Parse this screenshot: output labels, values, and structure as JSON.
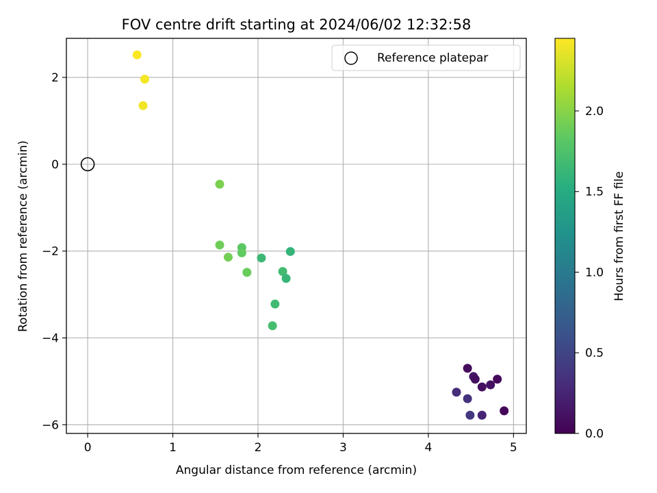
{
  "chart_data": {
    "type": "scatter",
    "title": "FOV centre drift starting at 2024/06/02 12:32:58",
    "xlabel": "Angular distance from reference (arcmin)",
    "ylabel": "Rotation from reference (arcmin)",
    "xlim": [
      -0.25,
      5.15
    ],
    "ylim": [
      -6.2,
      2.9
    ],
    "x_ticks": [
      0,
      1,
      2,
      3,
      4,
      5
    ],
    "x_tick_labels": [
      "0",
      "1",
      "2",
      "3",
      "4",
      "5"
    ],
    "y_ticks": [
      2,
      0,
      -2,
      -4,
      -6
    ],
    "y_tick_labels": [
      "2",
      "0",
      "−2",
      "−4",
      "−6"
    ],
    "grid": true,
    "legend": {
      "location": "top-right",
      "entries": [
        "Reference platepar"
      ]
    },
    "colorbar": {
      "label": "Hours from first FF file",
      "range": [
        0.0,
        2.45
      ],
      "ticks": [
        0.0,
        0.5,
        1.0,
        1.5,
        2.0
      ],
      "tick_labels": [
        "0.0",
        "0.5",
        "1.0",
        "1.5",
        "2.0"
      ],
      "colormap": "viridis"
    },
    "reference_point": {
      "x": 0,
      "y": 0,
      "name": "Reference platepar"
    },
    "points": [
      {
        "x": 0.58,
        "y": 2.52,
        "hours": 2.44
      },
      {
        "x": 0.67,
        "y": 1.96,
        "hours": 2.42
      },
      {
        "x": 0.65,
        "y": 1.35,
        "hours": 2.4
      },
      {
        "x": 1.55,
        "y": -0.46,
        "hours": 1.95
      },
      {
        "x": 1.55,
        "y": -1.86,
        "hours": 1.9
      },
      {
        "x": 1.65,
        "y": -2.14,
        "hours": 1.92
      },
      {
        "x": 1.81,
        "y": -1.92,
        "hours": 1.82
      },
      {
        "x": 1.81,
        "y": -2.04,
        "hours": 1.85
      },
      {
        "x": 1.87,
        "y": -2.49,
        "hours": 1.88
      },
      {
        "x": 2.04,
        "y": -2.16,
        "hours": 1.65
      },
      {
        "x": 2.38,
        "y": -2.01,
        "hours": 1.6
      },
      {
        "x": 2.29,
        "y": -2.47,
        "hours": 1.68
      },
      {
        "x": 2.33,
        "y": -2.63,
        "hours": 1.62
      },
      {
        "x": 2.2,
        "y": -3.22,
        "hours": 1.67
      },
      {
        "x": 2.17,
        "y": -3.72,
        "hours": 1.7
      },
      {
        "x": 4.46,
        "y": -4.7,
        "hours": 0.08
      },
      {
        "x": 4.53,
        "y": -4.89,
        "hours": 0.15
      },
      {
        "x": 4.55,
        "y": -4.95,
        "hours": 0.1
      },
      {
        "x": 4.81,
        "y": -4.95,
        "hours": 0.06
      },
      {
        "x": 4.73,
        "y": -5.08,
        "hours": 0.12
      },
      {
        "x": 4.63,
        "y": -5.13,
        "hours": 0.1
      },
      {
        "x": 4.33,
        "y": -5.25,
        "hours": 0.3
      },
      {
        "x": 4.46,
        "y": -5.4,
        "hours": 0.35
      },
      {
        "x": 4.49,
        "y": -5.78,
        "hours": 0.4
      },
      {
        "x": 4.63,
        "y": -5.78,
        "hours": 0.25
      },
      {
        "x": 4.89,
        "y": -5.68,
        "hours": 0.04
      }
    ]
  }
}
